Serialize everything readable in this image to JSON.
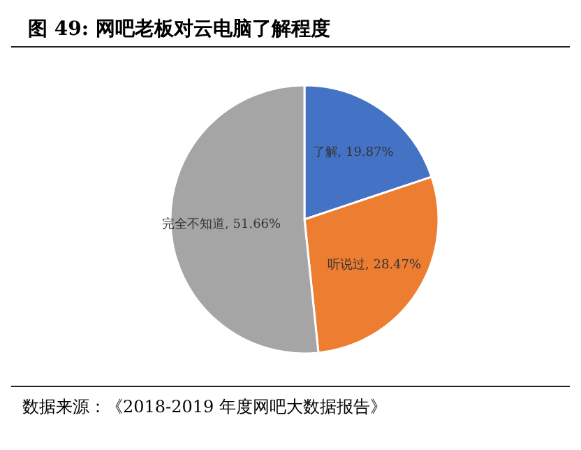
{
  "chart_data": {
    "type": "pie",
    "title": "图 49: 网吧老板对云电脑了解程度",
    "categories": [
      "了解",
      "听说过",
      "完全不知道"
    ],
    "values": [
      19.87,
      28.47,
      51.66
    ],
    "value_labels": [
      "19.87%",
      "28.47%",
      "51.66%"
    ],
    "colors": [
      "#4472c4",
      "#ed7d31",
      "#a5a5a5"
    ],
    "annotations": [
      "数据来源：《2018-2019 年度网吧大数据报告》"
    ]
  }
}
